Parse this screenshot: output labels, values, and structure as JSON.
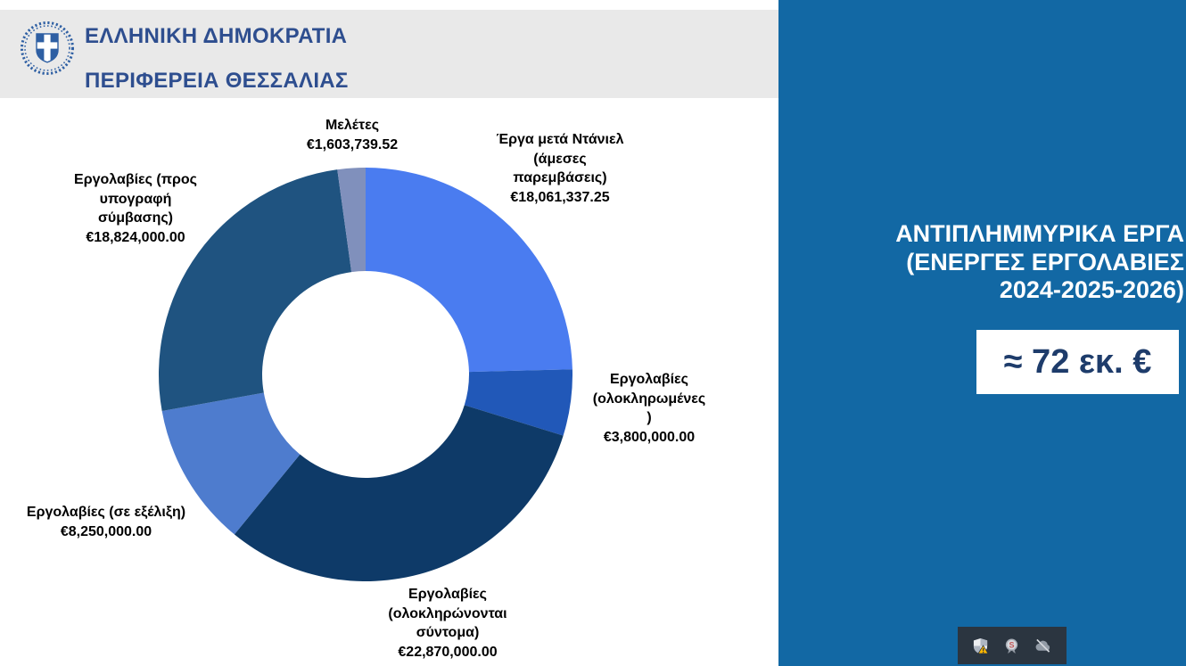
{
  "header": {
    "org_line1": "ΕΛΛΗΝΙΚΗ ΔΗΜΟΚΡΑΤΙΑ",
    "org_line2": "ΠΕΡΙΦΕΡΕΙΑ ΘΕΣΣΑΛΙΑΣ",
    "logo": "greek-republic-emblem",
    "text_color": "#2E4E8F",
    "bg_color": "#E9E9E9"
  },
  "panel": {
    "title": "ΑΝΤΙΠΛΗΜΜΥΡΙΚΑ ΕΡΓΑ\n(ΕΝΕΡΓΕΣ ΕΡΓΟΛΑΒΙΕΣ\n2024-2025-2026)",
    "total_badge": "≈ 72 εκ. €",
    "bg_color": "#1268A4",
    "badge_text_color": "#1E3C6B"
  },
  "chart_data": {
    "type": "pie",
    "subtype": "donut",
    "donut_hole_ratio": 0.5,
    "start_angle_deg": 0,
    "direction": "clockwise",
    "legend_position": "data-labels-outside",
    "slices": [
      {
        "name": "Έργα μετά Ντάνιελ (άμεσες παρεμβάσεις)",
        "value": 18061337.25,
        "color": "#4A7CF0",
        "label": "Έργα μετά Ντάνιελ\n(άμεσες\nπαρεμβάσεις)\n€18,061,337.25"
      },
      {
        "name": "Εργολαβίες (ολοκληρωμένες)",
        "value": 3800000.0,
        "color": "#2158B8",
        "label": "Εργολαβίες\n(ολοκληρωμένες\n)\n€3,800,000.00"
      },
      {
        "name": "Εργολαβίες (ολοκληρώνονται σύντομα)",
        "value": 22870000.0,
        "color": "#0E3A68",
        "label": "Εργολαβίες\n(ολοκληρώνονται\nσύντομα)\n€22,870,000.00"
      },
      {
        "name": "Εργολαβίες (σε εξέλιξη)",
        "value": 8250000.0,
        "color": "#4E7CCE",
        "label": "Εργολαβίες (σε εξέλιξη)\n€8,250,000.00"
      },
      {
        "name": "Εργολαβίες (προς υπογραφή σύμβασης)",
        "value": 18824000.0,
        "color": "#1F5380",
        "label": "Εργολαβίες (προς\nυπογραφή\nσύμβασης)\n€18,824,000.00"
      },
      {
        "name": "Μελέτες",
        "value": 1603739.52,
        "color": "#8090BC",
        "label": "Μελέτες\n€1,603,739.52"
      }
    ]
  },
  "tray": {
    "bg_color": "#2B3540",
    "icons": [
      {
        "name": "security-shield-warning-icon"
      },
      {
        "name": "antivirus-s-badge-icon"
      },
      {
        "name": "cloud-offline-icon"
      }
    ]
  }
}
